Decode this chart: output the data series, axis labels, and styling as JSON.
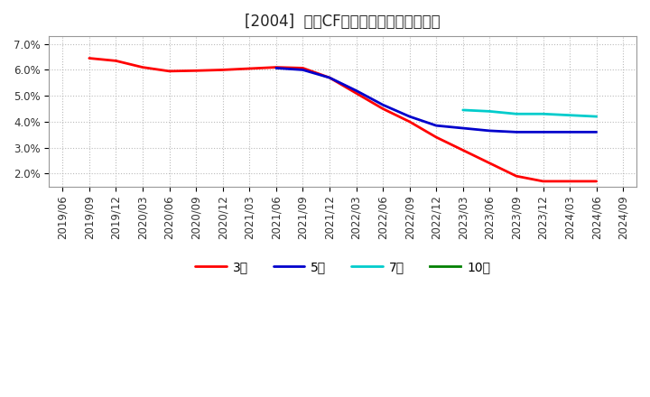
{
  "title": "[2004]  営業CFマージンの平均値の推移",
  "ylim": [
    0.015,
    0.073
  ],
  "yticks": [
    0.02,
    0.03,
    0.04,
    0.05,
    0.06,
    0.07
  ],
  "ytick_labels": [
    "2.0%",
    "3.0%",
    "4.0%",
    "5.0%",
    "6.0%",
    "7.0%"
  ],
  "xtick_labels": [
    "2019/06",
    "2019/09",
    "2019/12",
    "2020/03",
    "2020/06",
    "2020/09",
    "2020/12",
    "2021/03",
    "2021/06",
    "2021/09",
    "2021/12",
    "2022/03",
    "2022/06",
    "2022/09",
    "2022/12",
    "2023/03",
    "2023/06",
    "2023/09",
    "2023/12",
    "2024/03",
    "2024/06",
    "2024/09"
  ],
  "background_color": "#ffffff",
  "plot_bg_color": "#ffffff",
  "grid_color": "#aaaaaa",
  "series": [
    {
      "label": "3年",
      "color": "#ff0000",
      "x": [
        1,
        2,
        3,
        4,
        5,
        6,
        7,
        8,
        9,
        10,
        11,
        12,
        13,
        14,
        15,
        16,
        17,
        18,
        19,
        20
      ],
      "y": [
        0.0645,
        0.0635,
        0.061,
        0.0595,
        0.0597,
        0.06,
        0.0605,
        0.061,
        0.0607,
        0.057,
        0.051,
        0.045,
        0.04,
        0.034,
        0.029,
        0.024,
        0.019,
        0.017,
        0.017,
        0.017
      ]
    },
    {
      "label": "5年",
      "color": "#0000cc",
      "x": [
        8,
        9,
        10,
        11,
        12,
        13,
        14,
        15,
        16,
        17,
        18,
        19,
        20
      ],
      "y": [
        0.0607,
        0.06,
        0.057,
        0.052,
        0.0465,
        0.042,
        0.0385,
        0.0375,
        0.0365,
        0.036,
        0.036,
        0.036,
        0.036
      ]
    },
    {
      "label": "7年",
      "color": "#00cccc",
      "x": [
        15,
        16,
        17,
        18,
        19,
        20
      ],
      "y": [
        0.0445,
        0.044,
        0.043,
        0.043,
        0.0425,
        0.042
      ]
    },
    {
      "label": "10年",
      "color": "#008000",
      "x": [],
      "y": []
    }
  ],
  "title_fontsize": 12,
  "tick_fontsize": 8.5,
  "legend_fontsize": 10,
  "linewidth": 2.0
}
